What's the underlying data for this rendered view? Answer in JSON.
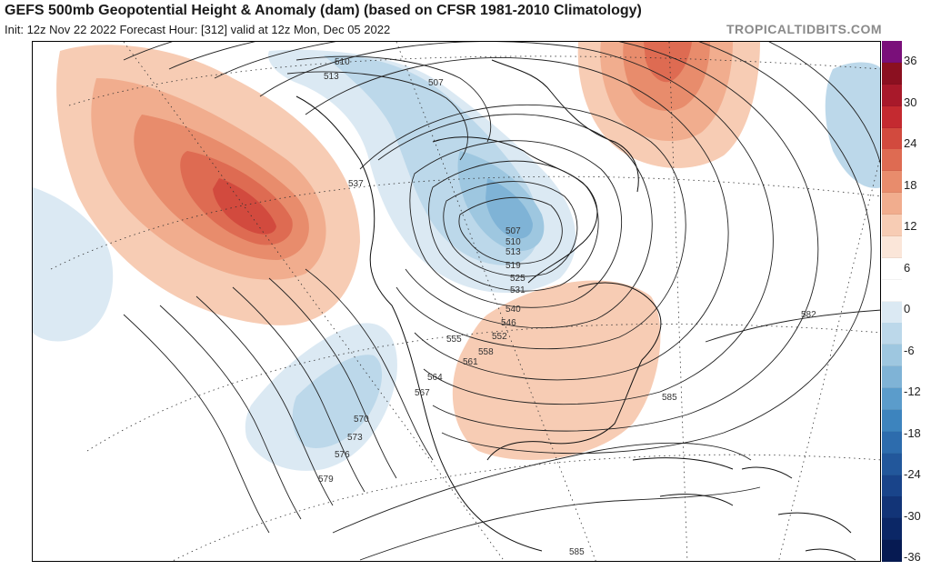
{
  "header": {
    "title": "GEFS 500mb Geopotential Height & Anomaly (dam) (based on CFSR 1981-2010 Climatology)",
    "subtitle": "Init: 12z Nov 22 2022   Forecast Hour: [312]   valid at 12z Mon, Dec 05 2022",
    "brand": "TROPICALTIDBITS.COM"
  },
  "colorbar": {
    "labels": [
      "36",
      "30",
      "24",
      "18",
      "12",
      "6",
      "0",
      "-6",
      "-12",
      "-18",
      "-24",
      "-30",
      "-36"
    ],
    "colors": [
      "#7a0f7a",
      "#8b1020",
      "#a8192a",
      "#c42a30",
      "#d24a3e",
      "#de6b52",
      "#e88c6c",
      "#f1ad8e",
      "#f7ccb4",
      "#fbe6d9",
      "#ffffff",
      "#ffffff",
      "#dbe9f3",
      "#bcd8ea",
      "#9ec7e0",
      "#7fb3d6",
      "#5b9ccb",
      "#3d84be",
      "#2d6cad",
      "#22579b",
      "#19448a",
      "#123477",
      "#0b2766",
      "#061a52"
    ]
  },
  "contour_labels": [
    {
      "text": "510"
    },
    {
      "text": "513"
    },
    {
      "text": "507"
    },
    {
      "text": "537"
    },
    {
      "text": "507"
    },
    {
      "text": "510"
    },
    {
      "text": "513"
    },
    {
      "text": "519"
    },
    {
      "text": "525"
    },
    {
      "text": "531"
    },
    {
      "text": "540"
    },
    {
      "text": "546"
    },
    {
      "text": "552"
    },
    {
      "text": "555"
    },
    {
      "text": "558"
    },
    {
      "text": "561"
    },
    {
      "text": "564"
    },
    {
      "text": "567"
    },
    {
      "text": "570"
    },
    {
      "text": "573"
    },
    {
      "text": "576"
    },
    {
      "text": "579"
    },
    {
      "text": "582"
    },
    {
      "text": "585"
    },
    {
      "text": "585"
    }
  ]
}
